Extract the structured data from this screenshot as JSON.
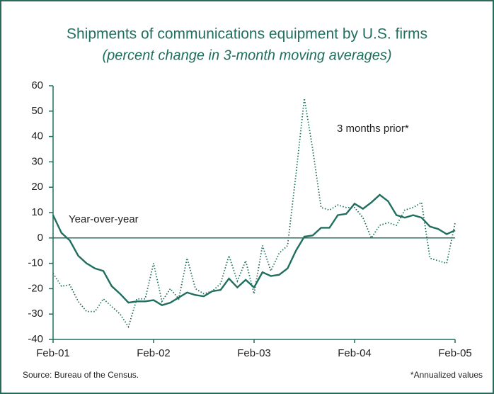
{
  "chart_data": {
    "type": "line",
    "title": "Shipments of communications equipment by U.S. firms",
    "subtitle": "(percent change in 3-month moving averages)",
    "source": "Source: Bureau of the Census.",
    "footnote": "*Annualized values",
    "categories": [
      "Feb-01",
      null,
      null,
      null,
      null,
      null,
      null,
      null,
      null,
      null,
      null,
      null,
      "Feb-02",
      null,
      null,
      null,
      null,
      null,
      null,
      null,
      null,
      null,
      null,
      null,
      "Feb-03",
      null,
      null,
      null,
      null,
      null,
      null,
      null,
      null,
      null,
      null,
      null,
      "Feb-04",
      null,
      null,
      null,
      null,
      null,
      null,
      null,
      null,
      null,
      null,
      null,
      "Feb-05"
    ],
    "ylim": [
      -40,
      60
    ],
    "yticks": [
      -40,
      -30,
      -20,
      -10,
      0,
      10,
      20,
      30,
      40,
      50,
      60
    ],
    "series": [
      {
        "name": "Year-over-year",
        "color": "#1f6e5e",
        "style": "solid",
        "values": [
          9,
          2,
          -1,
          -7,
          -10,
          -12,
          -13,
          -19,
          -22,
          -25.5,
          -25,
          -25,
          -24.5,
          -26.5,
          -25.5,
          -23.5,
          -21.5,
          -22.5,
          -23,
          -21,
          -20.5,
          -16,
          -19.5,
          -16.5,
          -19.5,
          -13.5,
          -15,
          -14.5,
          -12,
          -5,
          0.5,
          1,
          4,
          4,
          9,
          9.5,
          13.5,
          11.5,
          14,
          17,
          14.5,
          9,
          8,
          9,
          8,
          4.5,
          3.5,
          1.5,
          3
        ]
      },
      {
        "name": "3 months prior*",
        "color": "#1f6e5e",
        "style": "dotted",
        "values": [
          -14,
          -19,
          -18.5,
          -25,
          -29,
          -29,
          -24,
          -27,
          -30,
          -35,
          -24,
          -24,
          -10,
          -25,
          -20,
          -24,
          -8,
          -20,
          -22,
          -21,
          -18,
          -7,
          -17,
          -9,
          -22,
          -3,
          -13,
          -6,
          -3,
          25,
          55,
          35,
          12,
          11,
          13,
          12,
          12,
          8,
          0,
          5,
          6,
          5,
          11,
          12,
          14,
          -8,
          -9,
          -10,
          6
        ]
      }
    ]
  }
}
